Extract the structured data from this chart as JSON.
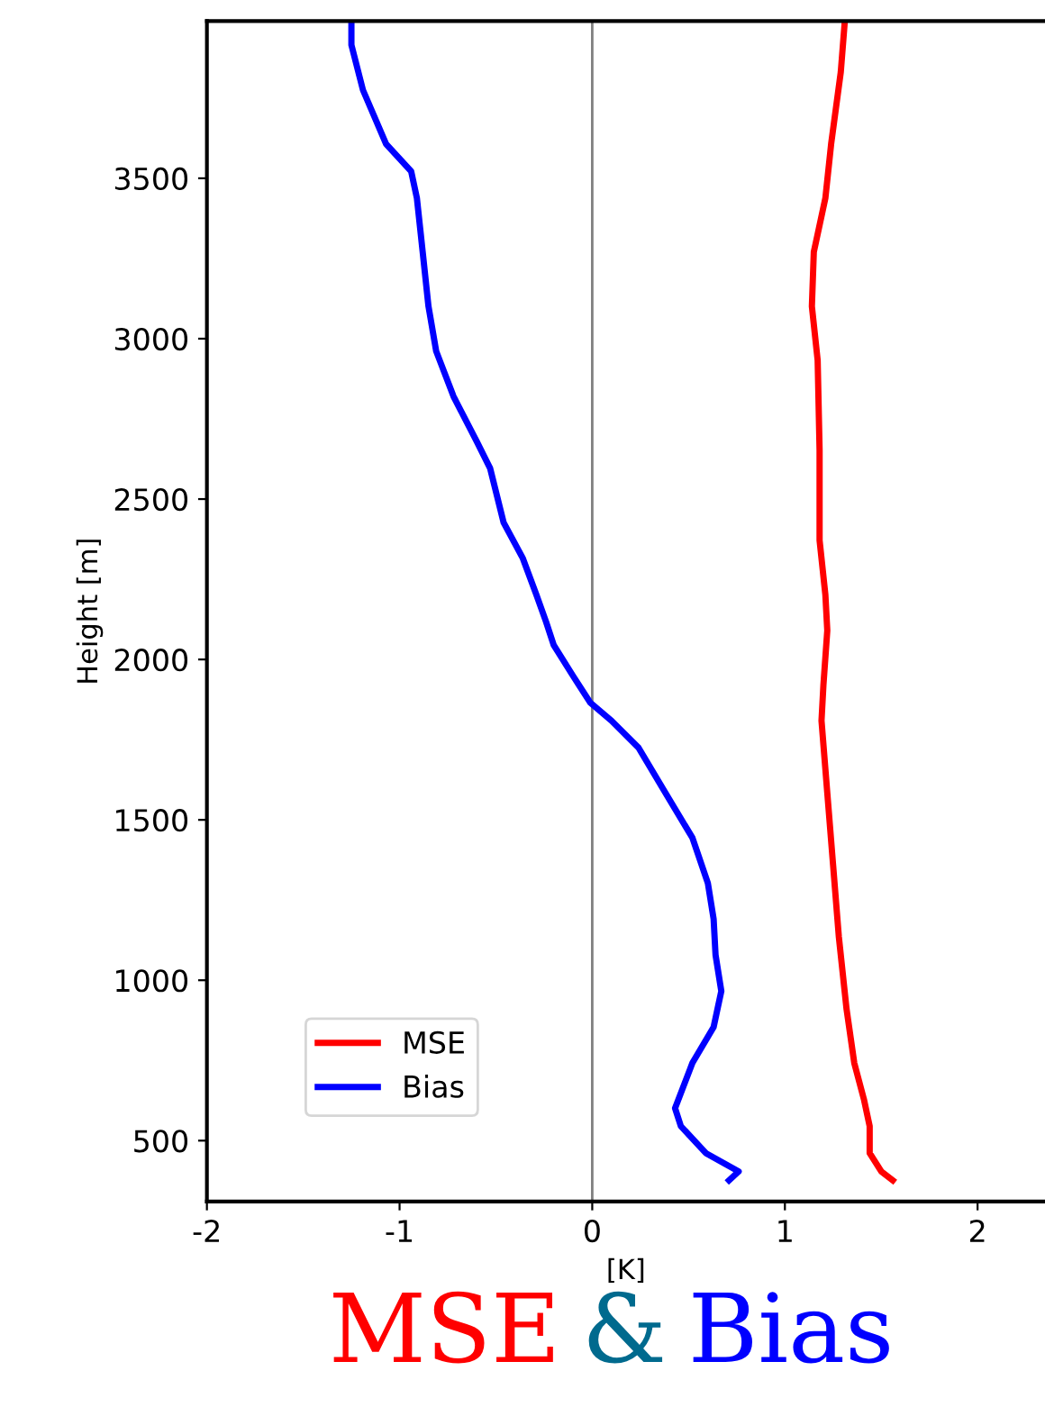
{
  "chart_data": {
    "type": "line",
    "xlabel": "[K]",
    "ylabel": "Height [m]",
    "xlim": [
      -2,
      2.35
    ],
    "xticks": [
      -2,
      -1,
      0,
      1,
      2
    ],
    "ylim": [
      310,
      3990
    ],
    "yticks": [
      500,
      1000,
      1500,
      2000,
      2500,
      3000,
      3500
    ],
    "grid": false,
    "legend": "lower left",
    "ref_lines": [
      {
        "axis": "x",
        "value": 0,
        "color": "#808080"
      }
    ],
    "annotations": [
      "MSE",
      "&",
      "Bias"
    ],
    "series": [
      {
        "name": "MSE",
        "color": "#ff0000",
        "x": [
          1.31,
          1.29,
          1.24,
          1.21,
          1.15,
          1.14,
          1.17,
          1.18,
          1.18,
          1.21,
          1.22,
          1.2,
          1.19,
          1.22,
          1.25,
          1.28,
          1.32,
          1.36,
          1.41,
          1.44,
          1.44,
          1.5,
          1.56
        ],
        "values": [
          3983,
          3831,
          3607,
          3438,
          3270,
          3101,
          2933,
          2652,
          2371,
          2202,
          2090,
          1921,
          1809,
          1584,
          1360,
          1135,
          910,
          742,
          629,
          545,
          461,
          404,
          376
        ]
      },
      {
        "name": "Bias",
        "color": "#0000ff",
        "x": [
          -1.25,
          -1.25,
          -1.19,
          -1.07,
          -0.94,
          -0.91,
          -0.88,
          -0.85,
          -0.81,
          -0.72,
          -0.6,
          -0.53,
          -0.46,
          -0.36,
          -0.29,
          -0.24,
          -0.2,
          -0.1,
          -0.01,
          0.1,
          0.24,
          0.38,
          0.52,
          0.6,
          0.63,
          0.64,
          0.67,
          0.63,
          0.52,
          0.43,
          0.46,
          0.59,
          0.76,
          0.71
        ],
        "values": [
          3983,
          3916,
          3775,
          3607,
          3522,
          3438,
          3270,
          3101,
          2961,
          2820,
          2680,
          2596,
          2427,
          2315,
          2202,
          2118,
          2045,
          1949,
          1865,
          1809,
          1725,
          1584,
          1444,
          1303,
          1191,
          1079,
          966,
          854,
          742,
          601,
          545,
          461,
          404,
          376
        ]
      }
    ]
  }
}
